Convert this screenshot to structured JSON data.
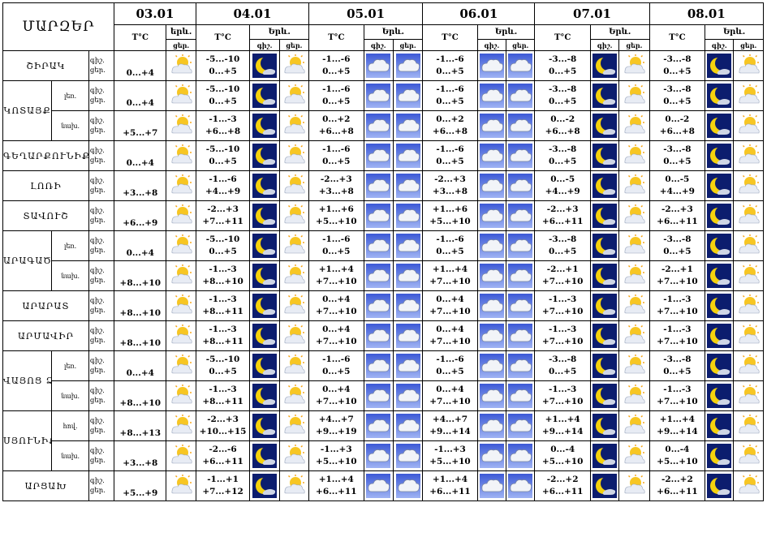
{
  "header": {
    "title": "ՄԱՐԶԵՐ",
    "temp_label": "T°C",
    "phen_label": "Երև.",
    "phen_label_short": "երև.",
    "night_label": "գիշ.",
    "day_label": "ցեր.",
    "dates": [
      "03.01",
      "04.01",
      "05.01",
      "06.01",
      "07.01",
      "08.01"
    ]
  },
  "labels": {
    "night": "գիշ.",
    "day": "ցեր.",
    "lowland": "լեռ.",
    "foothill": "նախ.",
    "lowland_alt": "հով."
  },
  "icon_legend": {
    "moon": "moon-icon",
    "sun_cloud": "sun-cloud-icon",
    "cloud": "cloud-icon"
  },
  "rows": [
    {
      "region": "ՇԻՐԱԿ",
      "sub": "",
      "temps": [
        [
          "",
          "0...+4"
        ],
        [
          "-5...-10",
          "0...+5"
        ],
        [
          "-1...-6",
          "0...+5"
        ],
        [
          "-1...-6",
          "0...+5"
        ],
        [
          "-3...-8",
          "0...+5"
        ],
        [
          "-3...-8",
          "0...+5"
        ]
      ]
    },
    {
      "region": "ԿՈՏԱՅՔ",
      "sub": "լեռ.",
      "temps": [
        [
          "",
          "0...+4"
        ],
        [
          "-5...-10",
          "0...+5"
        ],
        [
          "-1...-6",
          "0...+5"
        ],
        [
          "-1...-6",
          "0...+5"
        ],
        [
          "-3...-8",
          "0...+5"
        ],
        [
          "-3...-8",
          "0...+5"
        ]
      ]
    },
    {
      "region": "",
      "sub": "նախ.",
      "temps": [
        [
          "",
          "+5...+7"
        ],
        [
          "-1...-3",
          "+6...+8"
        ],
        [
          "0...+2",
          "+6...+8"
        ],
        [
          "0...+2",
          "+6...+8"
        ],
        [
          "0...-2",
          "+6...+8"
        ],
        [
          "0...-2",
          "+6...+8"
        ]
      ]
    },
    {
      "region": "ԳԵՂԱՐՔՈՒՆԻՔ",
      "sub": "",
      "temps": [
        [
          "",
          "0...+4"
        ],
        [
          "-5...-10",
          "0...+5"
        ],
        [
          "-1...-6",
          "0...+5"
        ],
        [
          "-1...-6",
          "0...+5"
        ],
        [
          "-3...-8",
          "0...+5"
        ],
        [
          "-3...-8",
          "0...+5"
        ]
      ]
    },
    {
      "region": "ԼՈՌԻ",
      "sub": "",
      "temps": [
        [
          "",
          "+3...+8"
        ],
        [
          "-1...-6",
          "+4...+9"
        ],
        [
          "-2...+3",
          "+3...+8"
        ],
        [
          "-2...+3",
          "+3...+8"
        ],
        [
          "0...-5",
          "+4...+9"
        ],
        [
          "0...-5",
          "+4...+9"
        ]
      ]
    },
    {
      "region": "ՏԱՎՈՒՇ",
      "sub": "",
      "temps": [
        [
          "",
          "+6...+9"
        ],
        [
          "-2...+3",
          "+7...+11"
        ],
        [
          "+1...+6",
          "+5...+10"
        ],
        [
          "+1...+6",
          "+5...+10"
        ],
        [
          "-2...+3",
          "+6...+11"
        ],
        [
          "-2...+3",
          "+6...+11"
        ]
      ]
    },
    {
      "region": "ԱՐԱԳԱԾՈՏՆ",
      "sub": "լեռ.",
      "temps": [
        [
          "",
          "0...+4"
        ],
        [
          "-5...-10",
          "0...+5"
        ],
        [
          "-1...-6",
          "0...+5"
        ],
        [
          "-1...-6",
          "0...+5"
        ],
        [
          "-3...-8",
          "0...+5"
        ],
        [
          "-3...-8",
          "0...+5"
        ]
      ]
    },
    {
      "region": "",
      "sub": "նախ.",
      "temps": [
        [
          "",
          "+8...+10"
        ],
        [
          "-1...-3",
          "+8...+10"
        ],
        [
          "+1...+4",
          "+7...+10"
        ],
        [
          "+1...+4",
          "+7...+10"
        ],
        [
          "-2...+1",
          "+7...+10"
        ],
        [
          "-2...+1",
          "+7...+10"
        ]
      ]
    },
    {
      "region": "ԱՐԱՐԱՏ",
      "sub": "",
      "temps": [
        [
          "",
          "+8...+10"
        ],
        [
          "-1...-3",
          "+8...+11"
        ],
        [
          "0...+4",
          "+7...+10"
        ],
        [
          "0...+4",
          "+7...+10"
        ],
        [
          "-1...-3",
          "+7...+10"
        ],
        [
          "-1...-3",
          "+7...+10"
        ]
      ]
    },
    {
      "region": "ԱՐՄԱՎԻՐ",
      "sub": "",
      "temps": [
        [
          "",
          "+8...+10"
        ],
        [
          "-1...-3",
          "+8...+11"
        ],
        [
          "0...+4",
          "+7...+10"
        ],
        [
          "0...+4",
          "+7...+10"
        ],
        [
          "-1...-3",
          "+7...+10"
        ],
        [
          "-1...-3",
          "+7...+10"
        ]
      ]
    },
    {
      "region": "ՎԱՅՈՑ ՁՈՐ",
      "sub": "լեռ.",
      "temps": [
        [
          "",
          "0...+4"
        ],
        [
          "-5...-10",
          "0...+5"
        ],
        [
          "-1...-6",
          "0...+5"
        ],
        [
          "-1...-6",
          "0...+5"
        ],
        [
          "-3...-8",
          "0...+5"
        ],
        [
          "-3...-8",
          "0...+5"
        ]
      ]
    },
    {
      "region": "",
      "sub": "նախ.",
      "temps": [
        [
          "",
          "+8...+10"
        ],
        [
          "-1...-3",
          "+8...+11"
        ],
        [
          "0...+4",
          "+7...+10"
        ],
        [
          "0...+4",
          "+7...+10"
        ],
        [
          "-1...-3",
          "+7...+10"
        ],
        [
          "-1...-3",
          "+7...+10"
        ]
      ]
    },
    {
      "region": "ՍՅՈՒՆԻՔ",
      "sub": "հով.",
      "temps": [
        [
          "",
          "+8...+13"
        ],
        [
          "-2...+3",
          "+10...+15"
        ],
        [
          "+4...+7",
          "+9...+19"
        ],
        [
          "+4...+7",
          "+9...+14"
        ],
        [
          "+1...+4",
          "+9...+14"
        ],
        [
          "+1...+4",
          "+9...+14"
        ]
      ]
    },
    {
      "region": "",
      "sub": "նախ.",
      "temps": [
        [
          "",
          "+3...+8"
        ],
        [
          "-2...-6",
          "+6...+11"
        ],
        [
          "-1...+3",
          "+5...+10"
        ],
        [
          "-1...+3",
          "+5...+10"
        ],
        [
          "0...-4",
          "+5...+10"
        ],
        [
          "0...-4",
          "+5...+10"
        ]
      ]
    },
    {
      "region": "ԱՐՑԱԽ",
      "sub": "",
      "temps": [
        [
          "",
          "+5...+9"
        ],
        [
          "-1...+1",
          "+7...+12"
        ],
        [
          "+1...+4",
          "+6...+11"
        ],
        [
          "+1...+4",
          "+6...+11"
        ],
        [
          "-2...+2",
          "+6...+11"
        ],
        [
          "-2...+2",
          "+6...+11"
        ]
      ]
    }
  ]
}
